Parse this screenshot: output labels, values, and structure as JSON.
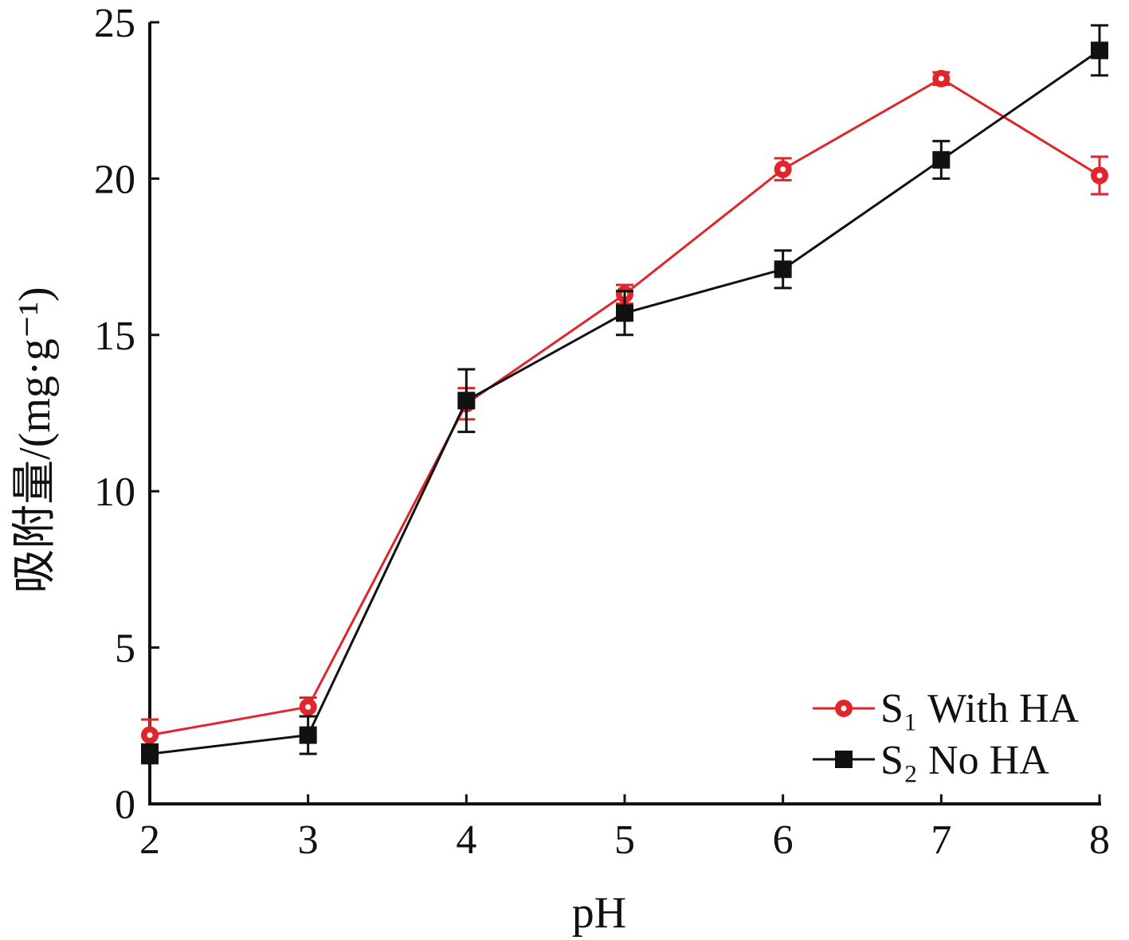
{
  "chart_data": {
    "type": "line",
    "xlabel": "pH",
    "ylabel": "吸附量/(mg·g⁻¹)",
    "xlim": [
      2,
      8
    ],
    "ylim": [
      0,
      25
    ],
    "x_ticks": [
      "2",
      "3",
      "4",
      "5",
      "6",
      "7",
      "8"
    ],
    "y_ticks": [
      "0",
      "5",
      "10",
      "15",
      "20",
      "25"
    ],
    "grid": false,
    "legend_position": "bottom-right",
    "series": [
      {
        "name": "S₁ With HA",
        "color": "#e0252b",
        "marker": "circle",
        "x": [
          2,
          3,
          4,
          5,
          6,
          7,
          8
        ],
        "y": [
          2.2,
          3.1,
          12.8,
          16.3,
          20.3,
          23.2,
          20.1
        ],
        "error": [
          0.5,
          0.3,
          0.5,
          0.3,
          0.35,
          0.2,
          0.6
        ]
      },
      {
        "name": "S₂ No HA",
        "color": "#111111",
        "marker": "square",
        "x": [
          2,
          3,
          4,
          5,
          6,
          7,
          8
        ],
        "y": [
          1.6,
          2.2,
          12.9,
          15.7,
          17.1,
          20.6,
          24.1
        ],
        "error": [
          0.3,
          0.6,
          1.0,
          0.7,
          0.6,
          0.6,
          0.8
        ]
      }
    ]
  }
}
